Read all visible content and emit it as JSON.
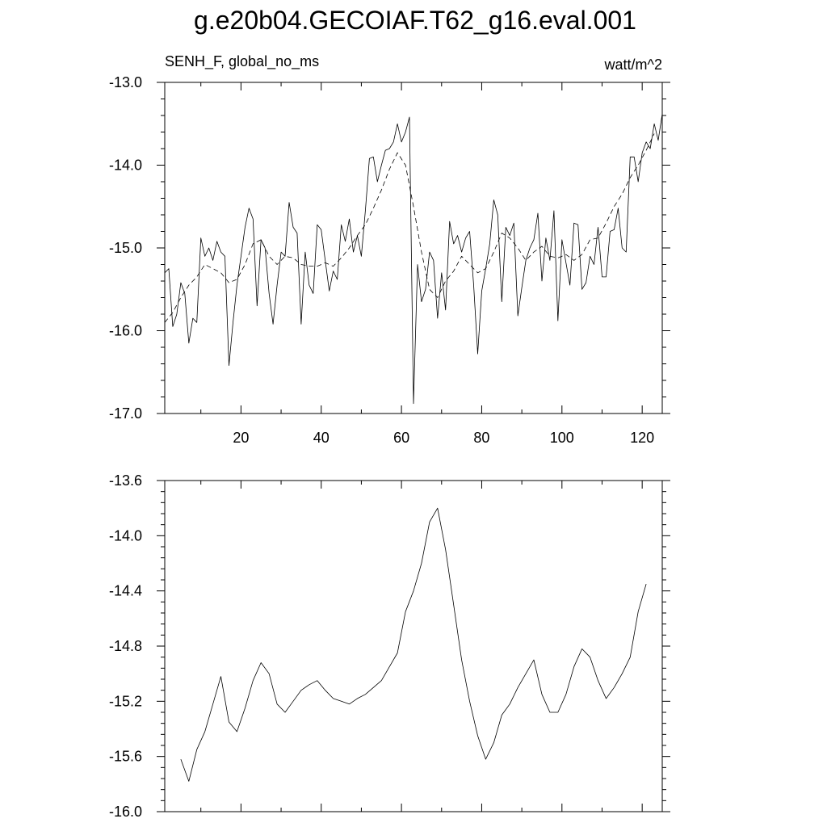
{
  "figure_title": "g.e20b04.GECOIAF.T62_g16.eval.001",
  "chart_data": [
    {
      "type": "line",
      "left_label": "SENH_F, global_no_ms",
      "right_label": "watt/m^2",
      "xlim": [
        1,
        125
      ],
      "ylim": [
        -17.0,
        -13.0
      ],
      "x_ticks": [
        20,
        40,
        60,
        80,
        100,
        120
      ],
      "x_tick_labels": [
        "20",
        "40",
        "60",
        "80",
        "100",
        "120"
      ],
      "y_ticks": [
        -17.0,
        -16.0,
        -15.0,
        -14.0,
        -13.0
      ],
      "y_tick_labels": [
        "-17.0",
        "-16.0",
        "-15.0",
        "-14.0",
        "-13.0"
      ],
      "series": [
        {
          "style": "solid",
          "x": [
            1,
            2,
            3,
            4,
            5,
            6,
            7,
            8,
            9,
            10,
            11,
            12,
            13,
            14,
            15,
            16,
            17,
            18,
            19,
            20,
            21,
            22,
            23,
            24,
            25,
            26,
            27,
            28,
            29,
            30,
            31,
            32,
            33,
            34,
            35,
            36,
            37,
            38,
            39,
            40,
            41,
            42,
            43,
            44,
            45,
            46,
            47,
            48,
            49,
            50,
            51,
            52,
            53,
            54,
            55,
            56,
            57,
            58,
            59,
            60,
            61,
            62,
            63,
            64,
            65,
            66,
            67,
            68,
            69,
            70,
            71,
            72,
            73,
            74,
            75,
            76,
            77,
            78,
            79,
            80,
            81,
            82,
            83,
            84,
            85,
            86,
            87,
            88,
            89,
            90,
            91,
            92,
            93,
            94,
            95,
            96,
            97,
            98,
            99,
            100,
            101,
            102,
            103,
            104,
            105,
            106,
            107,
            108,
            109,
            110,
            111,
            112,
            113,
            114,
            115,
            116,
            117,
            118,
            119,
            120,
            121,
            122,
            123,
            124,
            125
          ],
          "values": [
            -15.3,
            -15.25,
            -15.95,
            -15.8,
            -15.42,
            -15.55,
            -16.15,
            -15.85,
            -15.9,
            -14.88,
            -15.1,
            -15.0,
            -15.15,
            -14.92,
            -15.05,
            -15.1,
            -16.42,
            -15.9,
            -15.45,
            -15.1,
            -14.75,
            -14.52,
            -14.65,
            -15.7,
            -14.9,
            -15.0,
            -15.55,
            -15.92,
            -15.45,
            -15.05,
            -15.1,
            -14.45,
            -14.75,
            -14.82,
            -15.92,
            -15.05,
            -15.45,
            -15.55,
            -14.72,
            -14.78,
            -15.15,
            -15.52,
            -15.28,
            -15.38,
            -14.72,
            -14.92,
            -14.65,
            -15.05,
            -14.85,
            -15.1,
            -14.55,
            -13.92,
            -13.9,
            -14.2,
            -14.0,
            -13.82,
            -13.8,
            -13.72,
            -13.5,
            -13.72,
            -13.6,
            -13.42,
            -16.88,
            -15.2,
            -15.65,
            -15.5,
            -15.05,
            -15.15,
            -15.85,
            -15.3,
            -15.75,
            -14.68,
            -14.95,
            -14.85,
            -15.05,
            -14.88,
            -14.8,
            -15.45,
            -16.28,
            -15.52,
            -15.25,
            -14.95,
            -14.42,
            -14.6,
            -15.65,
            -14.75,
            -14.85,
            -14.7,
            -15.82,
            -15.48,
            -15.15,
            -15.0,
            -14.9,
            -14.58,
            -15.4,
            -14.88,
            -15.15,
            -14.55,
            -15.88,
            -14.9,
            -15.18,
            -15.45,
            -14.7,
            -14.72,
            -15.5,
            -15.42,
            -15.1,
            -15.2,
            -14.75,
            -15.35,
            -15.35,
            -14.8,
            -14.78,
            -14.52,
            -15.0,
            -15.05,
            -13.9,
            -13.9,
            -14.2,
            -13.85,
            -13.72,
            -13.8,
            -13.5,
            -13.7,
            -13.38
          ]
        },
        {
          "style": "dashed",
          "x": [
            1,
            3,
            5,
            7,
            9,
            11,
            13,
            15,
            17,
            19,
            21,
            23,
            25,
            27,
            29,
            31,
            33,
            35,
            37,
            39,
            41,
            43,
            45,
            47,
            49,
            51,
            53,
            55,
            57,
            59,
            61,
            63,
            65,
            67,
            69,
            71,
            73,
            75,
            77,
            79,
            81,
            83,
            85,
            87,
            89,
            91,
            93,
            95,
            97,
            99,
            101,
            103,
            105,
            107,
            109,
            111,
            113,
            115,
            117,
            119,
            121,
            123
          ],
          "values": [
            -15.9,
            -15.78,
            -15.6,
            -15.45,
            -15.35,
            -15.2,
            -15.25,
            -15.3,
            -15.42,
            -15.38,
            -15.2,
            -14.95,
            -14.9,
            -15.1,
            -15.2,
            -15.1,
            -15.12,
            -15.2,
            -15.22,
            -15.22,
            -15.18,
            -15.22,
            -15.12,
            -15.0,
            -14.85,
            -14.72,
            -14.52,
            -14.3,
            -14.05,
            -13.85,
            -14.0,
            -14.5,
            -15.05,
            -15.5,
            -15.6,
            -15.4,
            -15.28,
            -15.1,
            -15.2,
            -15.3,
            -15.25,
            -15.05,
            -14.82,
            -14.88,
            -15.0,
            -15.15,
            -15.05,
            -14.98,
            -15.1,
            -15.12,
            -15.08,
            -15.15,
            -15.08,
            -14.9,
            -14.88,
            -14.7,
            -14.5,
            -14.35,
            -14.15,
            -14.0,
            -13.82,
            -13.62
          ]
        }
      ]
    },
    {
      "type": "line",
      "xlim": [
        1,
        125
      ],
      "ylim": [
        -16.0,
        -13.6
      ],
      "x_ticks": [
        20,
        40,
        60,
        80,
        100,
        120
      ],
      "y_ticks": [
        -16.0,
        -15.6,
        -15.2,
        -14.8,
        -14.4,
        -14.0,
        -13.6
      ],
      "y_tick_labels": [
        "-16.0",
        "-15.6",
        "-15.2",
        "-14.8",
        "-14.4",
        "-14.0",
        "-13.6"
      ],
      "series": [
        {
          "style": "solid",
          "x": [
            5,
            7,
            9,
            11,
            13,
            15,
            17,
            19,
            21,
            23,
            25,
            27,
            29,
            31,
            33,
            35,
            37,
            39,
            41,
            43,
            45,
            47,
            49,
            51,
            53,
            55,
            57,
            59,
            61,
            63,
            65,
            67,
            69,
            71,
            73,
            75,
            77,
            79,
            81,
            83,
            85,
            87,
            89,
            91,
            93,
            95,
            97,
            99,
            101,
            103,
            105,
            107,
            109,
            111,
            113,
            115,
            117,
            119,
            121
          ],
          "values": [
            -15.62,
            -15.78,
            -15.55,
            -15.42,
            -15.22,
            -15.02,
            -15.35,
            -15.42,
            -15.25,
            -15.05,
            -14.92,
            -15.0,
            -15.22,
            -15.28,
            -15.2,
            -15.12,
            -15.08,
            -15.05,
            -15.12,
            -15.18,
            -15.2,
            -15.22,
            -15.18,
            -15.15,
            -15.1,
            -15.05,
            -14.95,
            -14.85,
            -14.55,
            -14.4,
            -14.2,
            -13.9,
            -13.8,
            -14.1,
            -14.5,
            -14.9,
            -15.2,
            -15.45,
            -15.62,
            -15.5,
            -15.3,
            -15.22,
            -15.1,
            -15.0,
            -14.9,
            -15.15,
            -15.28,
            -15.28,
            -15.15,
            -14.95,
            -14.82,
            -14.88,
            -15.05,
            -15.18,
            -15.1,
            -15.0,
            -14.88,
            -14.55,
            -14.35
          ]
        }
      ]
    }
  ]
}
